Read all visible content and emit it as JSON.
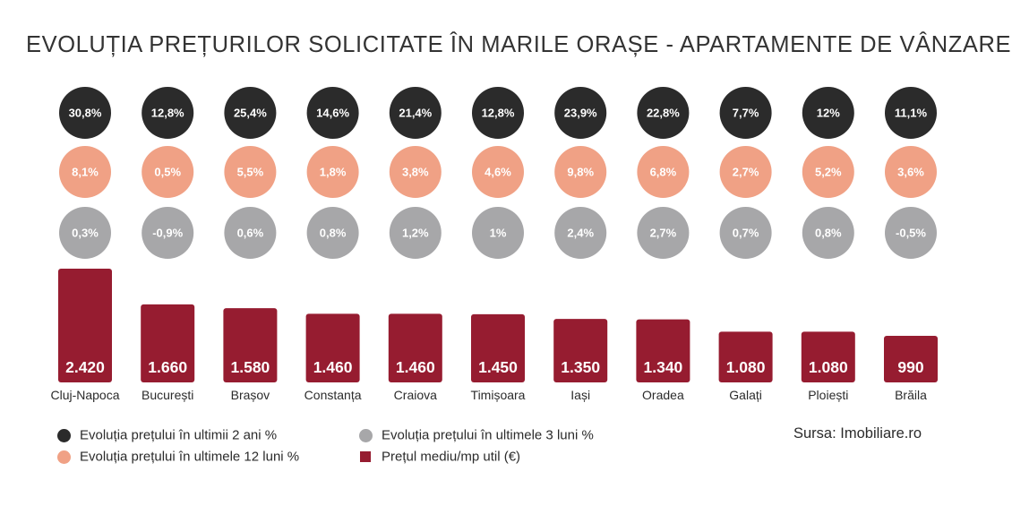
{
  "colors": {
    "two_years": "#2b2b2b",
    "twelve_months": "#f0a185",
    "three_months": "#a7a7a9",
    "bars": "#961c30",
    "text_dark": "#2b2b2b"
  },
  "legend": {
    "items": [
      {
        "label": "Evoluția prețului în ultimii 2 ani %",
        "marker": "dot",
        "color": "#2b2b2b"
      },
      {
        "label": "Evoluția prețului în ultimele 12 luni %",
        "marker": "dot",
        "color": "#f0a185"
      },
      {
        "label": "Evoluția prețului în ultimele 3 luni %",
        "marker": "dot",
        "color": "#a7a7a9"
      },
      {
        "label": "Prețul mediu/mp util (€)",
        "marker": "square",
        "color": "#961c30"
      }
    ]
  },
  "source": "Sursa: Imobiliare.ro",
  "chart_data": {
    "type": "bar",
    "title": "EVOLUȚIA PREȚURILOR SOLICITATE ÎN MARILE ORAȘE - APARTAMENTE DE VÂNZARE",
    "categories": [
      "Cluj-Napoca",
      "București",
      "Brașov",
      "Constanța",
      "Craiova",
      "Timișoara",
      "Iași",
      "Oradea",
      "Galați",
      "Ploiești",
      "Brăila"
    ],
    "series": [
      {
        "name": "Prețul mediu/mp util (€)",
        "values": [
          2420,
          1660,
          1580,
          1460,
          1460,
          1450,
          1350,
          1340,
          1080,
          1080,
          990
        ],
        "labels": [
          "2.420",
          "1.660",
          "1.580",
          "1.460",
          "1.460",
          "1.450",
          "1.350",
          "1.340",
          "1.080",
          "1.080",
          "990"
        ]
      },
      {
        "name": "Evoluția prețului în ultimii 2 ani %",
        "values": [
          30.8,
          12.8,
          25.4,
          14.6,
          21.4,
          12.8,
          23.9,
          22.8,
          7.7,
          12,
          11.1
        ],
        "labels": [
          "30,8%",
          "12,8%",
          "25,4%",
          "14,6%",
          "21,4%",
          "12,8%",
          "23,9%",
          "22,8%",
          "7,7%",
          "12%",
          "11,1%"
        ]
      },
      {
        "name": "Evoluția prețului în ultimele 12 luni %",
        "values": [
          8.1,
          0.5,
          5.5,
          1.8,
          3.8,
          4.6,
          9.8,
          6.8,
          2.7,
          5.2,
          3.6
        ],
        "labels": [
          "8,1%",
          "0,5%",
          "5,5%",
          "1,8%",
          "3,8%",
          "4,6%",
          "9,8%",
          "6,8%",
          "2,7%",
          "5,2%",
          "3,6%"
        ]
      },
      {
        "name": "Evoluția prețului în ultimele 3 luni %",
        "values": [
          0.3,
          -0.9,
          0.6,
          0.8,
          1.2,
          1,
          2.4,
          2.7,
          0.7,
          0.8,
          -0.5
        ],
        "labels": [
          "0,3%",
          "-0,9%",
          "0,6%",
          "0,8%",
          "1,2%",
          "1%",
          "2,4%",
          "2,7%",
          "0,7%",
          "0,8%",
          "-0,5%"
        ]
      }
    ],
    "ylim": [
      0,
      2420
    ],
    "grid": false,
    "legend_position": "bottom-left"
  }
}
